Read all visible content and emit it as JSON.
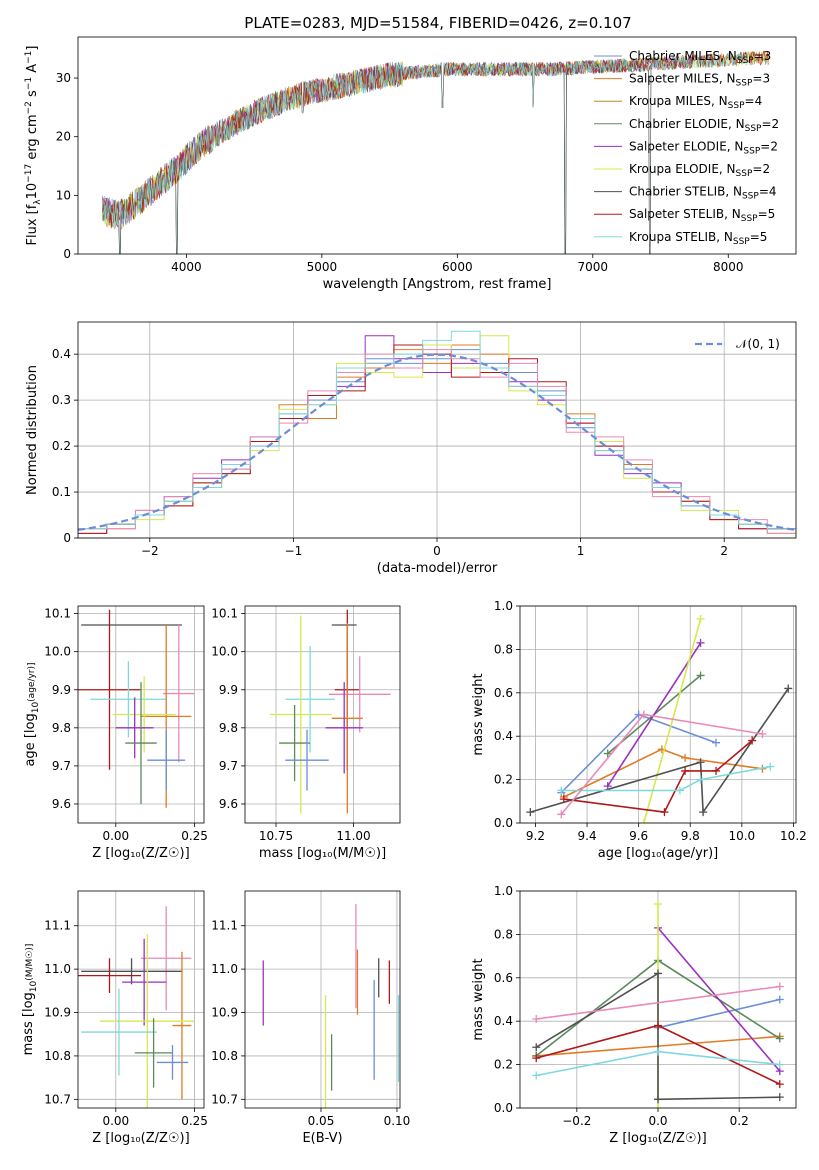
{
  "title": "PLATE=0283, MJD=51584, FIBERID=0426, z=0.107",
  "colors": [
    "#6a8fd8",
    "#e07b26",
    "#ad8c2a",
    "#5c8a5c",
    "#9b30c0",
    "#d6e84d",
    "#505050",
    "#b01818",
    "#7fd8e0",
    "#e88ab8"
  ],
  "chart_data": [
    {
      "id": "spectrum",
      "type": "line",
      "xlabel": "wavelength [Angstrom, rest frame]",
      "ylabel": "Flux [f_λ10^-17 erg cm^-2 s^-1 A^-1]",
      "xlim": [
        3200,
        8500
      ],
      "ylim": [
        0,
        37
      ],
      "xticks": [
        4000,
        5000,
        6000,
        7000,
        8000
      ],
      "yticks": [
        0,
        10,
        20,
        30
      ],
      "grid": false,
      "legend_position": "top-right",
      "series": [
        {
          "name": "Chabrier MILES, N_SSP=3",
          "color_index": 0
        },
        {
          "name": "Salpeter MILES, N_SSP=3",
          "color_index": 1
        },
        {
          "name": "Kroupa MILES, N_SSP=4",
          "color_index": 2
        },
        {
          "name": "Chabrier ELODIE, N_SSP=2",
          "color_index": 3
        },
        {
          "name": "Salpeter ELODIE, N_SSP=2",
          "color_index": 4
        },
        {
          "name": "Kroupa ELODIE, N_SSP=2",
          "color_index": 5
        },
        {
          "name": "Chabrier STELIB, N_SSP=4",
          "color_index": 6
        },
        {
          "name": "Salpeter STELIB, N_SSP=5",
          "color_index": 7
        },
        {
          "name": "Kroupa STELIB, N_SSP=5",
          "color_index": 8
        }
      ],
      "continuum": {
        "x": [
          3380,
          3500,
          3650,
          3800,
          3950,
          4100,
          4300,
          4500,
          4700,
          4900,
          5100,
          5300,
          5500,
          5700,
          5900,
          6100,
          6300,
          6500,
          6700,
          6900,
          7100,
          7300,
          7500,
          7700,
          7900,
          8100,
          8300
        ],
        "y": [
          7.5,
          6.5,
          9,
          12,
          15,
          18.5,
          21.5,
          24,
          26,
          27.5,
          28.5,
          29.5,
          30.5,
          31,
          31.5,
          31.5,
          31.5,
          31.5,
          31.5,
          31.8,
          32,
          32.2,
          32.5,
          32.8,
          33,
          33.3,
          33.5
        ]
      },
      "drops": [
        {
          "x": 3510,
          "y": 0
        },
        {
          "x": 3930,
          "y": 0
        },
        {
          "x": 4860,
          "y": 24
        },
        {
          "x": 5890,
          "y": 25
        },
        {
          "x": 6560,
          "y": 25
        },
        {
          "x": 6795,
          "y": 0
        },
        {
          "x": 7420,
          "y": 0
        }
      ]
    },
    {
      "id": "residuals",
      "type": "histogram",
      "xlabel": "(data-model)/error",
      "ylabel": "Normed distribution",
      "xlim": [
        -2.5,
        2.5
      ],
      "ylim": [
        0,
        0.47
      ],
      "xticks": [
        -2,
        -1,
        0,
        1,
        2
      ],
      "yticks": [
        0.0,
        0.1,
        0.2,
        0.3,
        0.4
      ],
      "grid": true,
      "legend_position": "top-right",
      "reference_label": "𝒩(0, 1)",
      "bin_edges": [
        -2.5,
        -2.3,
        -2.1,
        -1.9,
        -1.7,
        -1.5,
        -1.3,
        -1.1,
        -0.9,
        -0.7,
        -0.5,
        -0.3,
        -0.1,
        0.1,
        0.3,
        0.5,
        0.7,
        0.9,
        1.1,
        1.3,
        1.5,
        1.7,
        1.9,
        2.1,
        2.3,
        2.5
      ],
      "series": [
        {
          "color_index": 0,
          "values": [
            0.02,
            0.03,
            0.05,
            0.08,
            0.12,
            0.15,
            0.22,
            0.27,
            0.3,
            0.34,
            0.39,
            0.38,
            0.39,
            0.41,
            0.38,
            0.36,
            0.32,
            0.24,
            0.2,
            0.15,
            0.11,
            0.07,
            0.05,
            0.03,
            0.02
          ]
        },
        {
          "color_index": 1,
          "values": [
            0.02,
            0.02,
            0.06,
            0.07,
            0.11,
            0.14,
            0.21,
            0.29,
            0.26,
            0.35,
            0.37,
            0.41,
            0.38,
            0.42,
            0.4,
            0.33,
            0.3,
            0.27,
            0.19,
            0.16,
            0.1,
            0.08,
            0.04,
            0.03,
            0.01
          ]
        },
        {
          "color_index": 4,
          "values": [
            0.01,
            0.03,
            0.05,
            0.09,
            0.13,
            0.17,
            0.2,
            0.26,
            0.31,
            0.33,
            0.44,
            0.39,
            0.36,
            0.38,
            0.37,
            0.34,
            0.3,
            0.25,
            0.18,
            0.14,
            0.12,
            0.07,
            0.05,
            0.02,
            0.02
          ]
        },
        {
          "color_index": 5,
          "values": [
            0.02,
            0.03,
            0.04,
            0.08,
            0.12,
            0.16,
            0.19,
            0.28,
            0.29,
            0.38,
            0.36,
            0.35,
            0.42,
            0.37,
            0.44,
            0.32,
            0.29,
            0.26,
            0.21,
            0.13,
            0.11,
            0.06,
            0.06,
            0.03,
            0.01
          ]
        },
        {
          "color_index": 7,
          "values": [
            0.01,
            0.03,
            0.05,
            0.07,
            0.12,
            0.14,
            0.21,
            0.26,
            0.31,
            0.32,
            0.38,
            0.42,
            0.4,
            0.35,
            0.36,
            0.39,
            0.34,
            0.25,
            0.2,
            0.15,
            0.1,
            0.08,
            0.04,
            0.02,
            0.02
          ]
        },
        {
          "color_index": 9,
          "values": [
            0.02,
            0.02,
            0.06,
            0.09,
            0.14,
            0.15,
            0.22,
            0.25,
            0.32,
            0.36,
            0.4,
            0.37,
            0.41,
            0.39,
            0.35,
            0.38,
            0.33,
            0.23,
            0.22,
            0.17,
            0.09,
            0.09,
            0.05,
            0.04,
            0.01
          ]
        },
        {
          "color_index": 8,
          "values": [
            0.02,
            0.03,
            0.05,
            0.08,
            0.11,
            0.16,
            0.2,
            0.27,
            0.29,
            0.37,
            0.38,
            0.4,
            0.43,
            0.45,
            0.37,
            0.33,
            0.31,
            0.26,
            0.19,
            0.15,
            0.11,
            0.07,
            0.05,
            0.03,
            0.02
          ]
        }
      ]
    },
    {
      "id": "age-vs-Z",
      "type": "scatter",
      "xlabel": "Z [log₁₀(Z/Z☉)]",
      "ylabel": "age  [log₁₀(age/yr)]",
      "xlim": [
        -0.12,
        0.28
      ],
      "ylim": [
        9.55,
        10.12
      ],
      "xticks": [
        0.0,
        0.25
      ],
      "yticks": [
        9.6,
        9.7,
        9.8,
        9.9,
        10.0,
        10.1
      ],
      "grid": true,
      "points": [
        {
          "color_index": 6,
          "x": 0.05,
          "xerr": 0.16,
          "y": 10.07,
          "yerr": 0.0
        },
        {
          "color_index": 7,
          "x": -0.02,
          "xerr": 0.1,
          "y": 9.9,
          "yerr": 0.21
        },
        {
          "color_index": 8,
          "x": 0.04,
          "xerr": 0.12,
          "y": 9.875,
          "yerr": 0.1
        },
        {
          "color_index": 9,
          "x": 0.2,
          "xerr": 0.05,
          "y": 9.89,
          "yerr": 0.18
        },
        {
          "color_index": 1,
          "x": 0.16,
          "xerr": 0.08,
          "y": 9.83,
          "yerr": 0.24
        },
        {
          "color_index": 5,
          "x": 0.09,
          "xerr": 0.1,
          "y": 9.835,
          "yerr": 0.1
        },
        {
          "color_index": 4,
          "x": 0.06,
          "xerr": 0.06,
          "y": 9.8,
          "yerr": 0.08
        },
        {
          "color_index": 3,
          "x": 0.08,
          "xerr": 0.05,
          "y": 9.76,
          "yerr": 0.16
        },
        {
          "color_index": 0,
          "x": 0.16,
          "xerr": 0.06,
          "y": 9.715,
          "yerr": 0.08
        }
      ]
    },
    {
      "id": "age-vs-mass",
      "type": "scatter",
      "xlabel": "mass [log₁₀(M/M☉)]",
      "ylabel": "",
      "xlim": [
        10.65,
        11.15
      ],
      "ylim": [
        9.55,
        10.12
      ],
      "xticks": [
        10.75,
        11.0
      ],
      "yticks": [
        9.6,
        9.7,
        9.8,
        9.9,
        10.0,
        10.1
      ],
      "grid": true,
      "points": [
        {
          "color_index": 6,
          "x": 10.97,
          "xerr": 0.04,
          "y": 10.07,
          "yerr": 0.0
        },
        {
          "color_index": 7,
          "x": 10.98,
          "xerr": 0.04,
          "y": 9.9,
          "yerr": 0.21
        },
        {
          "color_index": 9,
          "x": 11.02,
          "xerr": 0.1,
          "y": 9.888,
          "yerr": 0.1
        },
        {
          "color_index": 8,
          "x": 10.86,
          "xerr": 0.08,
          "y": 9.875,
          "yerr": 0.14
        },
        {
          "color_index": 5,
          "x": 10.83,
          "xerr": 0.1,
          "y": 9.835,
          "yerr": 0.26
        },
        {
          "color_index": 1,
          "x": 10.98,
          "xerr": 0.05,
          "y": 9.825,
          "yerr": 0.25
        },
        {
          "color_index": 4,
          "x": 10.97,
          "xerr": 0.06,
          "y": 9.8,
          "yerr": 0.12
        },
        {
          "color_index": 3,
          "x": 10.81,
          "xerr": 0.05,
          "y": 9.76,
          "yerr": 0.1
        },
        {
          "color_index": 0,
          "x": 10.85,
          "xerr": 0.07,
          "y": 9.715,
          "yerr": 0.08
        }
      ]
    },
    {
      "id": "mass-weight-vs-age",
      "type": "line",
      "xlabel": "age  [log₁₀(age/yr)]",
      "ylabel": "mass weight",
      "xlim": [
        9.14,
        10.21
      ],
      "ylim": [
        0.0,
        1.0
      ],
      "xticks": [
        9.2,
        9.4,
        9.6,
        9.8,
        10.0,
        10.2
      ],
      "yticks": [
        0.0,
        0.2,
        0.4,
        0.6,
        0.8,
        1.0
      ],
      "grid": true,
      "series": [
        {
          "color_index": 0,
          "x": [
            9.3,
            9.6,
            9.9
          ],
          "y": [
            0.14,
            0.5,
            0.37
          ]
        },
        {
          "color_index": 1,
          "x": [
            9.31,
            9.69,
            9.78,
            10.08
          ],
          "y": [
            0.12,
            0.34,
            0.3,
            0.25
          ]
        },
        {
          "color_index": 3,
          "x": [
            9.48,
            9.84
          ],
          "y": [
            0.32,
            0.68
          ]
        },
        {
          "color_index": 4,
          "x": [
            9.48,
            9.84
          ],
          "y": [
            0.17,
            0.83
          ]
        },
        {
          "color_index": 5,
          "x": [
            9.62,
            9.84
          ],
          "y": [
            0.0,
            0.94
          ]
        },
        {
          "color_index": 6,
          "x": [
            9.18,
            9.84,
            9.85,
            10.18
          ],
          "y": [
            0.05,
            0.28,
            0.05,
            0.62
          ]
        },
        {
          "color_index": 7,
          "x": [
            9.31,
            9.7,
            9.78,
            9.9,
            10.04
          ],
          "y": [
            0.11,
            0.05,
            0.24,
            0.24,
            0.38
          ]
        },
        {
          "color_index": 8,
          "x": [
            9.3,
            9.76,
            9.84,
            10.11
          ],
          "y": [
            0.15,
            0.15,
            0.2,
            0.26
          ]
        },
        {
          "color_index": 9,
          "x": [
            9.3,
            9.62,
            10.08
          ],
          "y": [
            0.04,
            0.5,
            0.41
          ]
        }
      ]
    },
    {
      "id": "mass-vs-Z",
      "type": "scatter",
      "xlabel": "Z [log₁₀(Z/Z☉)]",
      "ylabel": "mass [log₁₀(M/M☉)]",
      "xlim": [
        -0.12,
        0.28
      ],
      "ylim": [
        10.68,
        11.18
      ],
      "xticks": [
        0.0,
        0.25
      ],
      "yticks": [
        10.7,
        10.8,
        10.9,
        11.0,
        11.1
      ],
      "grid": true,
      "points": [
        {
          "color_index": 9,
          "x": 0.16,
          "xerr": 0.08,
          "y": 11.025,
          "yerr": 0.12
        },
        {
          "color_index": 6,
          "x": 0.05,
          "xerr": 0.16,
          "y": 10.995,
          "yerr": 0.03
        },
        {
          "color_index": 7,
          "x": -0.02,
          "xerr": 0.1,
          "y": 10.985,
          "yerr": 0.04
        },
        {
          "color_index": 4,
          "x": 0.09,
          "xerr": 0.07,
          "y": 10.97,
          "yerr": 0.1
        },
        {
          "color_index": 1,
          "x": 0.21,
          "xerr": 0.03,
          "y": 10.87,
          "yerr": 0.17
        },
        {
          "color_index": 5,
          "x": 0.1,
          "xerr": 0.15,
          "y": 10.88,
          "yerr": 0.2
        },
        {
          "color_index": 8,
          "x": 0.01,
          "xerr": 0.12,
          "y": 10.855,
          "yerr": 0.1
        },
        {
          "color_index": 3,
          "x": 0.12,
          "xerr": 0.06,
          "y": 10.807,
          "yerr": 0.08
        },
        {
          "color_index": 0,
          "x": 0.18,
          "xerr": 0.05,
          "y": 10.785,
          "yerr": 0.04
        }
      ]
    },
    {
      "id": "mass-vs-EBV",
      "type": "scatter",
      "xlabel": "E(B-V)",
      "ylabel": "",
      "xlim": [
        0.0,
        0.102
      ],
      "ylim": [
        10.68,
        11.18
      ],
      "xticks": [
        0.05,
        0.1
      ],
      "yticks": [
        10.7,
        10.8,
        10.9,
        11.0,
        11.1
      ],
      "grid": true,
      "points": [
        {
          "color_index": 4,
          "x": 0.012,
          "xerr": 0,
          "y": 10.945,
          "yerr": 0.075
        },
        {
          "color_index": 5,
          "x": 0.053,
          "xerr": 0,
          "y": 10.8,
          "yerr": 0.14
        },
        {
          "color_index": 3,
          "x": 0.057,
          "xerr": 0,
          "y": 10.785,
          "yerr": 0.065
        },
        {
          "color_index": 9,
          "x": 0.073,
          "xerr": 0,
          "y": 11.03,
          "yerr": 0.12
        },
        {
          "color_index": 1,
          "x": 0.074,
          "xerr": 0,
          "y": 10.97,
          "yerr": 0.075
        },
        {
          "color_index": 0,
          "x": 0.085,
          "xerr": 0,
          "y": 10.86,
          "yerr": 0.115
        },
        {
          "color_index": 6,
          "x": 0.088,
          "xerr": 0,
          "y": 10.98,
          "yerr": 0.045
        },
        {
          "color_index": 7,
          "x": 0.095,
          "xerr": 0,
          "y": 10.97,
          "yerr": 0.05
        },
        {
          "color_index": 8,
          "x": 0.101,
          "xerr": 0,
          "y": 10.84,
          "yerr": 0.1
        }
      ]
    },
    {
      "id": "mass-weight-vs-Z",
      "type": "line",
      "xlabel": "Z [log₁₀(Z/Z☉)]",
      "ylabel": "mass weight",
      "xlim": [
        -0.34,
        0.34
      ],
      "ylim": [
        0.0,
        1.0
      ],
      "xticks": [
        -0.2,
        0.0,
        0.2
      ],
      "yticks": [
        0.0,
        0.2,
        0.4,
        0.6,
        0.8,
        1.0
      ],
      "grid": true,
      "series": [
        {
          "color_index": 0,
          "x": [
            0.0,
            0.3
          ],
          "y": [
            0.37,
            0.5
          ]
        },
        {
          "color_index": 1,
          "x": [
            -0.3,
            0.3
          ],
          "y": [
            0.24,
            0.33
          ]
        },
        {
          "color_index": 3,
          "x": [
            -0.3,
            0.0,
            0.3
          ],
          "y": [
            0.24,
            0.68,
            0.32
          ]
        },
        {
          "color_index": 4,
          "x": [
            0.0,
            0.3
          ],
          "y": [
            0.83,
            0.17
          ]
        },
        {
          "color_index": 5,
          "x": [
            0.0,
            0.0
          ],
          "y": [
            0.0,
            0.94
          ]
        },
        {
          "color_index": 6,
          "x": [
            -0.3,
            0.0,
            0.0,
            0.3
          ],
          "y": [
            0.28,
            0.62,
            0.04,
            0.05
          ]
        },
        {
          "color_index": 7,
          "x": [
            -0.3,
            0.0,
            0.3
          ],
          "y": [
            0.23,
            0.38,
            0.11
          ]
        },
        {
          "color_index": 8,
          "x": [
            -0.3,
            0.0,
            0.3
          ],
          "y": [
            0.15,
            0.26,
            0.2
          ]
        },
        {
          "color_index": 9,
          "x": [
            -0.3,
            0.3
          ],
          "y": [
            0.41,
            0.56
          ]
        }
      ]
    }
  ]
}
